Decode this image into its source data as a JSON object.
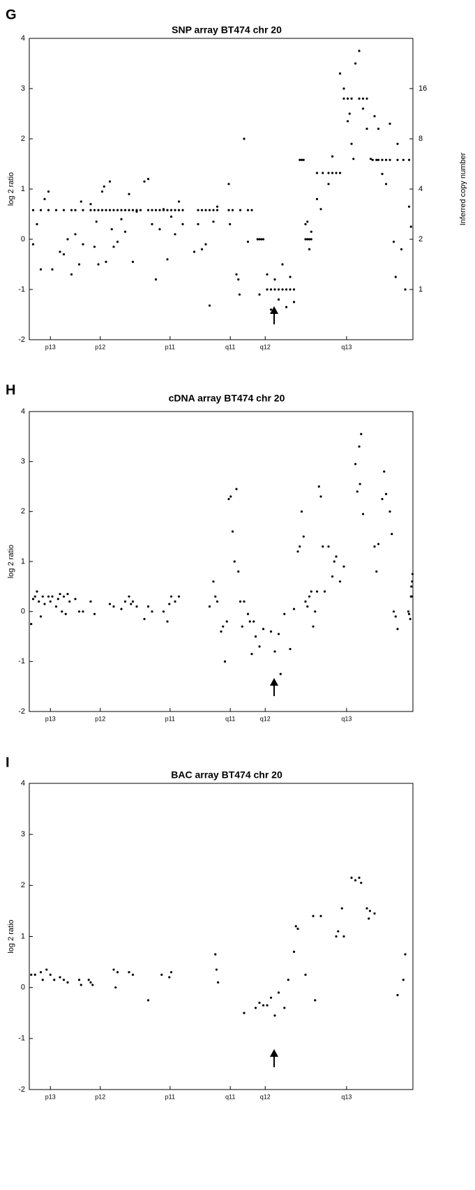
{
  "chart_data": [
    {
      "type": "scatter",
      "panel": "G",
      "title": "SNP array BT474 chr 20",
      "ylabel": "log 2 ratio",
      "y2label": "Inferred copy number",
      "color": "#000000",
      "xlim": [
        0,
        100
      ],
      "xticks": [
        {
          "value": 5.5,
          "label": "p13"
        },
        {
          "value": 18.5,
          "label": "p12"
        },
        {
          "value": 36.7,
          "label": "p11"
        },
        {
          "value": 52.4,
          "label": "q11"
        },
        {
          "value": 61.5,
          "label": "q12"
        },
        {
          "value": 82.7,
          "label": "q13"
        }
      ],
      "ylim": [
        -2,
        4
      ],
      "yticks": [
        -2,
        -1,
        0,
        1,
        2,
        3,
        4
      ],
      "y2lim": [
        0.5,
        32
      ],
      "y2ticks": [
        1,
        2,
        4,
        8,
        16
      ],
      "y2scale": "log",
      "x": [
        1,
        3,
        5,
        7,
        9,
        11,
        12,
        14,
        1,
        2,
        3,
        4,
        5,
        6,
        8,
        9,
        10,
        11,
        12,
        13,
        13.5,
        14,
        16,
        17,
        18,
        19,
        20,
        21,
        22,
        23,
        24,
        25,
        26,
        27,
        28,
        29,
        16,
        17,
        17.5,
        18,
        19,
        19.5,
        20,
        21,
        21.5,
        22,
        23,
        24,
        25,
        26,
        27,
        28,
        30,
        31,
        32,
        33,
        34,
        35,
        36,
        37,
        38,
        39,
        40,
        31,
        32,
        33,
        34,
        35,
        36,
        37,
        38,
        39,
        40,
        44,
        45,
        46,
        47,
        48,
        49,
        43,
        44,
        45,
        46,
        47,
        48,
        49,
        52,
        53,
        55,
        57,
        58,
        52,
        52.3,
        54,
        54.5,
        54.8,
        56,
        57,
        60,
        59.5,
        60,
        60.5,
        61,
        62,
        63,
        64,
        65,
        66,
        67,
        68,
        69,
        62,
        63,
        64,
        65,
        66,
        67,
        68,
        69,
        70.5,
        71,
        71.5,
        72,
        72.5,
        73,
        73.5,
        72,
        73,
        73.5,
        72.5,
        75,
        76.5,
        78,
        79,
        80,
        81,
        75,
        76,
        78,
        79,
        82,
        83,
        84,
        86,
        87,
        88,
        81,
        82,
        83,
        84,
        85,
        86,
        87,
        88,
        89,
        83.5,
        84.5,
        89.5,
        90.5,
        91,
        92,
        93,
        94,
        96,
        97.5,
        99,
        90,
        91,
        92,
        93,
        94,
        95,
        95.5,
        96,
        97,
        98,
        99.5,
        99
      ],
      "values": [
        0.58,
        0.58,
        0.58,
        0.58,
        0.58,
        0.58,
        0.58,
        0.58,
        -0.1,
        0.3,
        -0.6,
        0.8,
        0.95,
        -0.6,
        -0.25,
        -0.3,
        0,
        -0.7,
        0.1,
        -0.5,
        0.75,
        -0.1,
        0.58,
        0.58,
        0.58,
        0.58,
        0.58,
        0.58,
        0.58,
        0.58,
        0.58,
        0.58,
        0.58,
        0.58,
        0.58,
        0.58,
        0.7,
        -0.15,
        0.35,
        -0.5,
        0.95,
        1.05,
        -0.45,
        1.15,
        0.2,
        -0.15,
        -0.05,
        0.4,
        0.15,
        0.9,
        -0.45,
        0.55,
        1.15,
        1.2,
        0.3,
        -0.8,
        0.2,
        0.6,
        -0.4,
        0.45,
        0.1,
        0.75,
        0.3,
        0.58,
        0.58,
        0.58,
        0.58,
        0.58,
        0.58,
        0.58,
        0.58,
        0.58,
        0.58,
        0.58,
        0.58,
        0.58,
        0.58,
        0.58,
        0.58,
        -0.25,
        0.3,
        -0.2,
        -0.1,
        -1.32,
        0.35,
        0.65,
        0.58,
        0.58,
        0.58,
        0.58,
        0.58,
        1.1,
        0.3,
        -0.7,
        -0.8,
        -1.1,
        2.0,
        -0.05,
        -1.1,
        0,
        0,
        0,
        0,
        -1,
        -1,
        -1,
        -1,
        -1,
        -1,
        -1,
        -1,
        -0.7,
        -1.4,
        -0.8,
        -1.2,
        -0.5,
        -1.35,
        -0.75,
        -1.25,
        1.58,
        1.58,
        1.58,
        0,
        0,
        0,
        0,
        0.3,
        -0.2,
        0.15,
        0.35,
        1.32,
        1.32,
        1.32,
        1.32,
        1.32,
        1.32,
        0.8,
        0.6,
        1.1,
        1.65,
        2.8,
        2.8,
        2.8,
        2.8,
        2.8,
        2.8,
        3.3,
        3.0,
        2.35,
        1.9,
        3.5,
        3.75,
        2.6,
        2.2,
        1.6,
        2.5,
        1.6,
        1.58,
        1.58,
        1.58,
        1.58,
        1.58,
        1.58,
        1.58,
        1.58,
        1.58,
        2.45,
        2.2,
        1.3,
        1.1,
        2.3,
        -0.05,
        -0.75,
        1.9,
        -0.2,
        -1.0,
        0.25,
        0.65
      ]
    },
    {
      "type": "scatter",
      "panel": "H",
      "title": "cDNA array BT474 chr 20",
      "ylabel": "log 2 ratio",
      "color": "#000000",
      "xlim": [
        0,
        100
      ],
      "xticks": [
        {
          "value": 5.5,
          "label": "p13"
        },
        {
          "value": 18.5,
          "label": "p12"
        },
        {
          "value": 36.7,
          "label": "p11"
        },
        {
          "value": 52.4,
          "label": "q11"
        },
        {
          "value": 61.5,
          "label": "q12"
        },
        {
          "value": 82.7,
          "label": "q13"
        }
      ],
      "ylim": [
        -2,
        4
      ],
      "yticks": [
        -2,
        -1,
        0,
        1,
        2,
        3,
        4
      ],
      "x": [
        0.5,
        1,
        1.5,
        2,
        2.5,
        3,
        3.5,
        4,
        5,
        5.5,
        6,
        7,
        7.5,
        8,
        8.5,
        9,
        9.5,
        10,
        10.5,
        12,
        13,
        14,
        16,
        17,
        21,
        22,
        24,
        25,
        26,
        26.5,
        27,
        28,
        30,
        31,
        32,
        35,
        36,
        36.5,
        37,
        38,
        39,
        47,
        48,
        48.5,
        49,
        50,
        50.5,
        51,
        51.5,
        52,
        52.5,
        53,
        53.5,
        54,
        54.5,
        55,
        55.5,
        56,
        57,
        57.5,
        58,
        58.5,
        59,
        60,
        61,
        63,
        64,
        65,
        65.5,
        66.5,
        68,
        69,
        70,
        70.5,
        71,
        71.5,
        72,
        72.5,
        73,
        73.5,
        74,
        74.5,
        75,
        75.5,
        76,
        76.5,
        77,
        78,
        79,
        79.5,
        80,
        81,
        82,
        85,
        85.5,
        86,
        86.5,
        87,
        86.2,
        90,
        90.5,
        91,
        92,
        92.5,
        93,
        94,
        94.5,
        95,
        95.5,
        96,
        99,
        99.5,
        99.8,
        99.6,
        99.9,
        99.7,
        99.3,
        98.8
      ],
      "values": [
        -0.25,
        0.25,
        0.3,
        0.4,
        0.2,
        -0.1,
        0.3,
        0.15,
        0.3,
        0.2,
        0.3,
        0.1,
        0.25,
        0.35,
        0,
        0.3,
        -0.05,
        0.35,
        0.2,
        0.25,
        0,
        0,
        0.2,
        -0.05,
        0.15,
        0.1,
        0.05,
        0.2,
        0.3,
        0.15,
        0.2,
        0.1,
        -0.15,
        0.1,
        0,
        0,
        -0.2,
        0.15,
        0.3,
        0.2,
        0.3,
        0.1,
        0.6,
        0.3,
        0.2,
        -0.4,
        -0.3,
        -1.0,
        -0.2,
        2.25,
        2.3,
        1.6,
        1.0,
        2.45,
        0.8,
        0.2,
        -0.3,
        0.2,
        -0.05,
        -0.2,
        -0.85,
        -0.2,
        -0.5,
        -0.7,
        -0.35,
        -0.4,
        -0.8,
        -0.45,
        -1.25,
        -0.05,
        -0.75,
        0.05,
        1.2,
        1.3,
        2.0,
        1.5,
        0.2,
        0.1,
        0.3,
        0.4,
        -0.3,
        0.0,
        0.4,
        2.5,
        2.3,
        1.3,
        0.4,
        1.3,
        0.7,
        1.0,
        1.1,
        0.6,
        0.9,
        2.95,
        2.4,
        3.3,
        3.55,
        1.95,
        2.55,
        1.3,
        0.8,
        1.35,
        2.25,
        2.8,
        2.35,
        2.0,
        1.55,
        0,
        -0.1,
        -0.35,
        -0.05,
        0.3,
        0.6,
        0.5,
        0.75,
        0.3,
        -0.15,
        0.0
      ]
    },
    {
      "type": "scatter",
      "panel": "I",
      "title": "BAC array BT474 chr 20",
      "ylabel": "log 2 ratio",
      "color": "#000000",
      "xlim": [
        0,
        100
      ],
      "xticks": [
        {
          "value": 5.5,
          "label": "p13"
        },
        {
          "value": 18.5,
          "label": "p12"
        },
        {
          "value": 36.7,
          "label": "p11"
        },
        {
          "value": 52.4,
          "label": "q11"
        },
        {
          "value": 61.5,
          "label": "q12"
        },
        {
          "value": 82.7,
          "label": "q13"
        }
      ],
      "ylim": [
        -2,
        4
      ],
      "yticks": [
        -2,
        -1,
        0,
        1,
        2,
        3,
        4
      ],
      "x": [
        0.5,
        1.5,
        3,
        3.5,
        4.5,
        5.5,
        6.5,
        8,
        9,
        10,
        13,
        13.5,
        15.5,
        16,
        16.5,
        22,
        22.5,
        23,
        26,
        27,
        31,
        34.5,
        36.5,
        37,
        48.5,
        48.8,
        49.2,
        56,
        59,
        60,
        61,
        62,
        63,
        64,
        65,
        66.5,
        67.5,
        69,
        69.5,
        70,
        72,
        74,
        74.5,
        76,
        80,
        80.5,
        82,
        81.5,
        84,
        85,
        86,
        86.5,
        88,
        88.5,
        90,
        88.8,
        96,
        97.5,
        98
      ],
      "values": [
        0.25,
        0.25,
        0.3,
        0.15,
        0.35,
        0.25,
        0.15,
        0.2,
        0.15,
        0.1,
        0.15,
        0.05,
        0.15,
        0.1,
        0.05,
        0.35,
        0,
        0.3,
        0.3,
        0.25,
        -0.25,
        0.25,
        0.2,
        0.3,
        0.65,
        0.35,
        0.1,
        -0.5,
        -0.4,
        -0.3,
        -0.35,
        -0.35,
        -0.2,
        -0.55,
        -0.1,
        -0.4,
        0.15,
        0.7,
        1.2,
        1.15,
        0.25,
        1.4,
        -0.25,
        1.4,
        1.0,
        1.1,
        1.0,
        1.55,
        2.15,
        2.1,
        2.15,
        2.05,
        1.55,
        1.35,
        1.45,
        1.5,
        -0.15,
        0.15,
        0.65
      ]
    }
  ]
}
